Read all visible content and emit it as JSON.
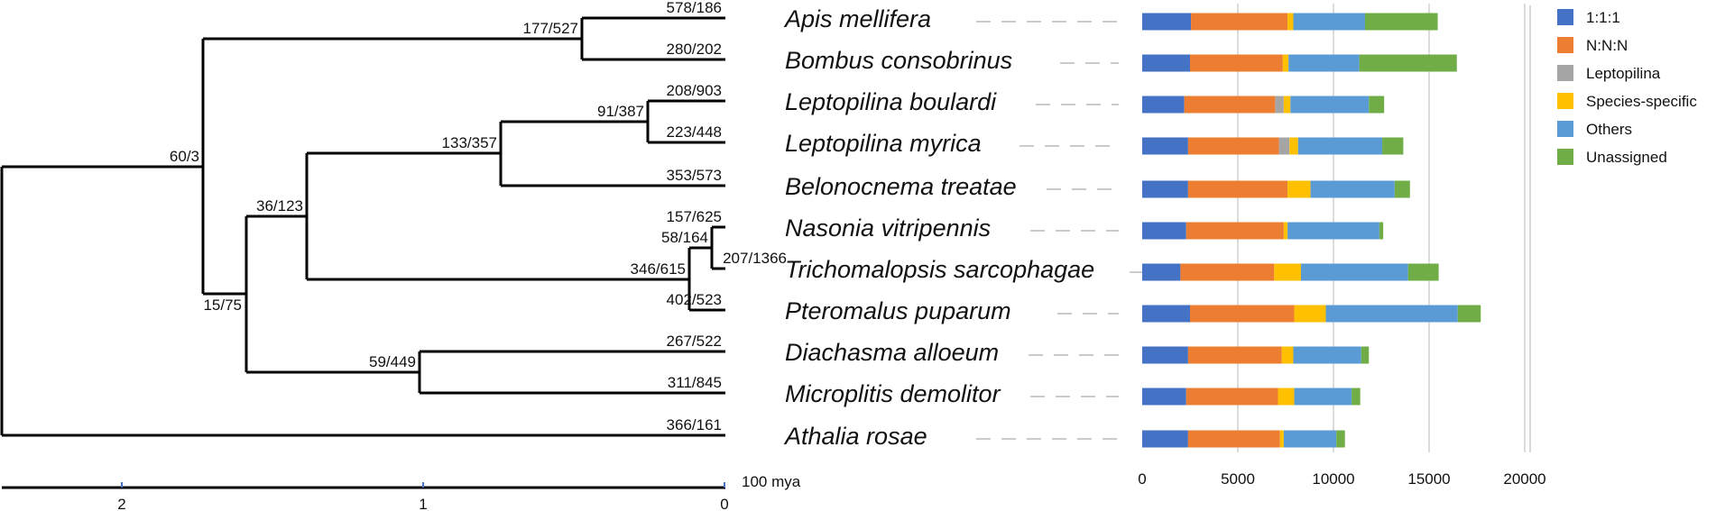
{
  "chart_data": {
    "type": "bar",
    "orientation": "horizontal",
    "stacked": true,
    "categories": [
      "Apis mellifera",
      "Bombus consobrinus",
      "Leptopilina boulardi",
      "Leptopilina myrica",
      "Belonocnema treatae",
      "Nasonia vitripennis",
      "Trichomalopsis sarcophagae",
      "Pteromalus puparum",
      "Diachasma alloeum",
      "Microplitis demolitor",
      "Athalia rosae"
    ],
    "series": [
      {
        "name": "1:1:1",
        "color": "#4472c4",
        "values": [
          2550,
          2500,
          2200,
          2400,
          2400,
          2300,
          2000,
          2500,
          2400,
          2300,
          2400
        ]
      },
      {
        "name": "N:N:N",
        "color": "#ed7d31",
        "values": [
          5050,
          4850,
          4750,
          4750,
          5200,
          5100,
          4900,
          5450,
          4900,
          4800,
          4800
        ]
      },
      {
        "name": "Leptopilina",
        "color": "#a5a5a5",
        "values": [
          0,
          0,
          450,
          550,
          0,
          0,
          0,
          0,
          0,
          0,
          0
        ]
      },
      {
        "name": "Species-specific",
        "color": "#ffc000",
        "values": [
          300,
          300,
          350,
          450,
          1200,
          200,
          1400,
          1650,
          600,
          850,
          200
        ]
      },
      {
        "name": "Others",
        "color": "#5b9bd5",
        "values": [
          3750,
          3700,
          4100,
          4400,
          4400,
          4800,
          5600,
          6900,
          3550,
          3000,
          2750
        ]
      },
      {
        "name": "Unassigned",
        "color": "#70ad47",
        "values": [
          3800,
          5100,
          800,
          1100,
          800,
          200,
          1600,
          1200,
          400,
          450,
          450
        ]
      }
    ],
    "xlim": [
      0,
      20000
    ],
    "xticks": [
      "0",
      "5000",
      "10000",
      "15000",
      "20000"
    ],
    "grid": true,
    "legend": "right"
  },
  "tree": {
    "leaf_labels": [
      "578/186",
      "280/202",
      "208/903",
      "223/448",
      "353/573",
      "157/625",
      "207/1366",
      "402/523",
      "267/522",
      "311/845",
      "366/161"
    ],
    "internal_labels": [
      "177/527",
      "91/387",
      "133/357",
      "36/123",
      "60/3",
      "58/164",
      "346/615",
      "15/75",
      "59/449"
    ],
    "scale_ticks": [
      "2",
      "1",
      "0"
    ],
    "scale_unit": "100 mya"
  }
}
